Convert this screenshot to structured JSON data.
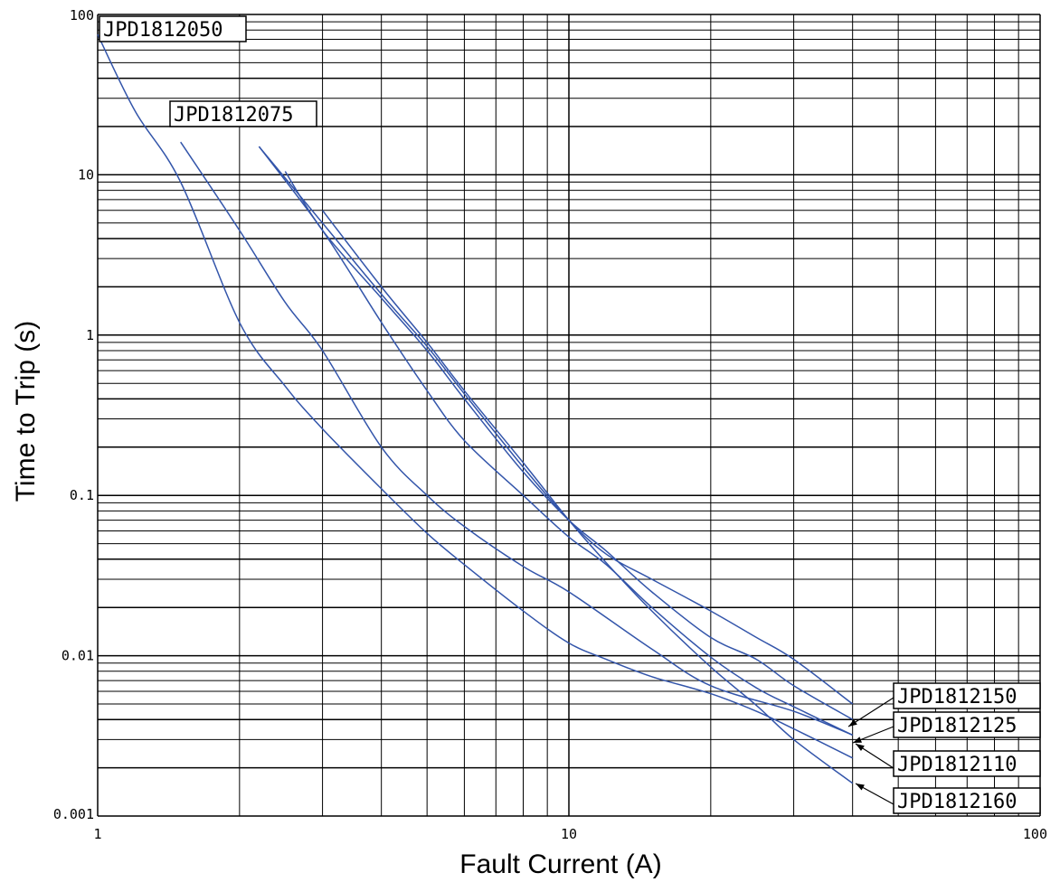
{
  "chart_data": {
    "type": "line",
    "title": "",
    "xlabel": "Fault Current (A)",
    "ylabel": "Time to Trip (s)",
    "xscale": "log",
    "yscale": "log",
    "xlim": [
      1,
      100
    ],
    "ylim": [
      0.001,
      100
    ],
    "grid": true,
    "x_tick_labels": [
      {
        "value": 1,
        "label": "1"
      },
      {
        "value": 10,
        "label": "10"
      },
      {
        "value": 100,
        "label": "100"
      }
    ],
    "y_tick_labels": [
      {
        "value": 100,
        "label": "100"
      },
      {
        "value": 10,
        "label": "10"
      },
      {
        "value": 1,
        "label": "1"
      },
      {
        "value": 0.1,
        "label": "0.1"
      },
      {
        "value": 0.01,
        "label": "0.01"
      },
      {
        "value": 0.001,
        "label": "0.001"
      }
    ],
    "series": [
      {
        "name": "JPD1812050",
        "x": [
          1.0,
          1.2,
          1.5,
          2.0,
          2.5,
          3.0,
          4.0,
          5.0,
          6.0,
          8.0,
          10.0,
          12.0,
          15.0,
          20.0,
          25.0,
          30.0,
          40.0
        ],
        "y": [
          75,
          25,
          9,
          1.2,
          0.48,
          0.26,
          0.11,
          0.058,
          0.037,
          0.019,
          0.012,
          0.0095,
          0.0074,
          0.0058,
          0.0045,
          0.0035,
          0.0023
        ]
      },
      {
        "name": "JPD1812075",
        "x": [
          1.5,
          2.0,
          2.5,
          3.0,
          4.0,
          5.0,
          6.0,
          8.0,
          10.0,
          15.0,
          20.0,
          30.0,
          40.0
        ],
        "y": [
          16,
          4.5,
          1.6,
          0.8,
          0.2,
          0.1,
          0.064,
          0.036,
          0.025,
          0.011,
          0.0065,
          0.0045,
          0.0032
        ]
      },
      {
        "name": "JPD1812110",
        "x": [
          2.2,
          3.0,
          4.0,
          5.0,
          6.0,
          8.0,
          10.0,
          12.0,
          15.0,
          20.0,
          25.0,
          30.0,
          40.0
        ],
        "y": [
          15,
          4.5,
          1.2,
          0.45,
          0.22,
          0.1,
          0.055,
          0.037,
          0.02,
          0.0098,
          0.0063,
          0.0048,
          0.0032
        ]
      },
      {
        "name": "JPD1812125",
        "x": [
          2.5,
          3.0,
          4.0,
          5.0,
          6.0,
          8.0,
          10.0,
          12.0,
          15.0,
          20.0,
          25.0,
          30.0,
          40.0
        ],
        "y": [
          10.5,
          4.5,
          1.7,
          0.8,
          0.4,
          0.14,
          0.07,
          0.045,
          0.025,
          0.013,
          0.0095,
          0.0065,
          0.004
        ]
      },
      {
        "name": "JPD1812150",
        "x": [
          2.2,
          3.0,
          4.0,
          5.0,
          6.0,
          8.0,
          10.0,
          12.0,
          15.0,
          20.0,
          25.0,
          30.0,
          40.0
        ],
        "y": [
          15,
          5.0,
          1.8,
          0.85,
          0.43,
          0.15,
          0.07,
          0.043,
          0.03,
          0.019,
          0.013,
          0.0095,
          0.005
        ]
      },
      {
        "name": "JPD1812160",
        "x": [
          3.0,
          4.0,
          5.0,
          6.0,
          8.0,
          10.0,
          12.0,
          15.0,
          20.0,
          25.0,
          30.0,
          40.0
        ],
        "y": [
          6.0,
          2.0,
          0.9,
          0.45,
          0.16,
          0.07,
          0.038,
          0.019,
          0.0085,
          0.0049,
          0.003,
          0.0016
        ]
      }
    ],
    "labels": [
      {
        "text": "JPD1812050",
        "series": "JPD1812050"
      },
      {
        "text": "JPD1812075",
        "series": "JPD1812075"
      },
      {
        "text": "JPD1812150",
        "series": "JPD1812150"
      },
      {
        "text": "JPD1812125",
        "series": "JPD1812125"
      },
      {
        "text": "JPD1812110",
        "series": "JPD1812110"
      },
      {
        "text": "JPD1812160",
        "series": "JPD1812160"
      }
    ],
    "colors": {
      "curve": "#3355aa",
      "grid": "#000000",
      "background": "#ffffff"
    }
  }
}
